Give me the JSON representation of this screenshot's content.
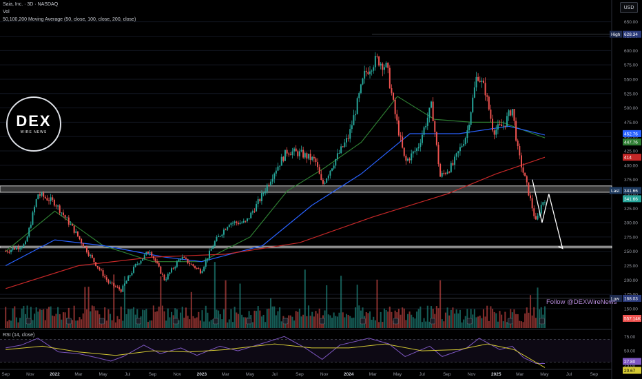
{
  "header": {
    "title": "Saia, Inc. · 3D · NASDAQ",
    "vol_label": "Vol",
    "ma_label": "50,100,200 Moving Average (50, close, 100, close, 200, close)",
    "rsi_label": "RSI (14, close)",
    "currency_button": "USD"
  },
  "logo": {
    "main": "DEX",
    "sub": "WIRE NEWS"
  },
  "follow_text": "Follow @DEXWireNews",
  "colors": {
    "up": "#26a69a",
    "down": "#ef5350",
    "ma50": "#2e7d32",
    "ma100": "#2962ff",
    "ma200": "#c62828",
    "rsi": "#7e57c2",
    "rsi_ma": "#d4c933",
    "zone": "#9e9e9e",
    "projection": "#ffffff",
    "high_label": "#2a3a7a",
    "low_label": "#2a3a7a"
  },
  "chart_data": {
    "type": "candlestick",
    "symbol": "Saia, Inc.",
    "interval": "3D",
    "exchange": "NASDAQ",
    "currency": "USD",
    "x_ticks": [
      "Sep",
      "Nov",
      "2022",
      "Mar",
      "May",
      "Jul",
      "Sep",
      "Nov",
      "2023",
      "Mar",
      "May",
      "Jul",
      "Sep",
      "Nov",
      "2024",
      "Mar",
      "May",
      "Jul",
      "Sep",
      "Nov",
      "2025",
      "Mar",
      "May",
      "Jul",
      "Sep"
    ],
    "y_ticks": [
      150,
      175,
      200,
      225,
      250,
      275,
      300,
      325,
      350,
      375,
      400,
      425,
      450,
      475,
      500,
      525,
      550,
      575,
      600,
      625,
      650
    ],
    "y_range": [
      100,
      685
    ],
    "price_path": [
      [
        "2021-09-01",
        250
      ],
      [
        "2021-10-20",
        262
      ],
      [
        "2021-11-20",
        350
      ],
      [
        "2022-01-01",
        335
      ],
      [
        "2022-02-15",
        290
      ],
      [
        "2022-04-01",
        240
      ],
      [
        "2022-05-15",
        195
      ],
      [
        "2022-06-15",
        182
      ],
      [
        "2022-07-20",
        225
      ],
      [
        "2022-08-25",
        252
      ],
      [
        "2022-10-01",
        200
      ],
      [
        "2022-11-10",
        240
      ],
      [
        "2022-12-30",
        215
      ],
      [
        "2023-02-01",
        265
      ],
      [
        "2023-03-10",
        300
      ],
      [
        "2023-04-20",
        300
      ],
      [
        "2023-05-25",
        340
      ],
      [
        "2023-07-01",
        390
      ],
      [
        "2023-08-01",
        425
      ],
      [
        "2023-09-05",
        420
      ],
      [
        "2023-10-10",
        408
      ],
      [
        "2023-10-27",
        365
      ],
      [
        "2023-11-25",
        405
      ],
      [
        "2024-01-01",
        450
      ],
      [
        "2024-02-10",
        560
      ],
      [
        "2024-03-10",
        585
      ],
      [
        "2024-04-05",
        570
      ],
      [
        "2024-04-25",
        490
      ],
      [
        "2024-05-20",
        405
      ],
      [
        "2024-06-20",
        430
      ],
      [
        "2024-07-25",
        505
      ],
      [
        "2024-08-15",
        380
      ],
      [
        "2024-09-15",
        400
      ],
      [
        "2024-10-20",
        455
      ],
      [
        "2024-11-15",
        560
      ],
      [
        "2024-12-05",
        530
      ],
      [
        "2024-12-25",
        460
      ],
      [
        "2025-01-20",
        470
      ],
      [
        "2025-02-10",
        500
      ],
      [
        "2025-02-25",
        420
      ],
      [
        "2025-03-20",
        360
      ],
      [
        "2025-04-10",
        300
      ],
      [
        "2025-04-25",
        335
      ],
      [
        "2025-05-02",
        341.66
      ]
    ],
    "moving_averages": [
      {
        "name": "MA 50",
        "color": "#2e7d32",
        "points": [
          [
            "2021-09-01",
            250
          ],
          [
            "2022-01-01",
            320
          ],
          [
            "2022-05-01",
            260
          ],
          [
            "2022-09-01",
            232
          ],
          [
            "2023-01-01",
            232
          ],
          [
            "2023-05-01",
            275
          ],
          [
            "2023-08-01",
            355
          ],
          [
            "2023-11-01",
            395
          ],
          [
            "2024-02-01",
            440
          ],
          [
            "2024-05-01",
            520
          ],
          [
            "2024-08-01",
            480
          ],
          [
            "2024-11-01",
            475
          ],
          [
            "2025-01-15",
            475
          ],
          [
            "2025-05-02",
            447.76
          ]
        ]
      },
      {
        "name": "MA 100",
        "color": "#2962ff",
        "points": [
          [
            "2021-09-01",
            225
          ],
          [
            "2022-01-01",
            270
          ],
          [
            "2022-05-01",
            260
          ],
          [
            "2022-10-01",
            240
          ],
          [
            "2023-01-01",
            232
          ],
          [
            "2023-06-01",
            260
          ],
          [
            "2023-10-01",
            330
          ],
          [
            "2024-02-01",
            385
          ],
          [
            "2024-06-01",
            455
          ],
          [
            "2024-10-01",
            455
          ],
          [
            "2025-02-01",
            468
          ],
          [
            "2025-05-02",
            452.76
          ]
        ]
      },
      {
        "name": "MA 200",
        "color": "#c62828",
        "points": [
          [
            "2021-09-01",
            185
          ],
          [
            "2022-03-01",
            225
          ],
          [
            "2022-09-01",
            240
          ],
          [
            "2023-03-01",
            245
          ],
          [
            "2023-09-01",
            265
          ],
          [
            "2024-03-01",
            310
          ],
          [
            "2024-09-01",
            350
          ],
          [
            "2025-01-01",
            385
          ],
          [
            "2025-05-02",
            414
          ]
        ]
      }
    ],
    "zones": [
      {
        "price_low": 353,
        "price_high": 364
      },
      {
        "price_low": 256,
        "price_high": 259
      }
    ],
    "projection": [
      [
        "2025-04-01",
        375
      ],
      [
        "2025-04-25",
        300
      ],
      [
        "2025-05-12",
        350
      ],
      [
        "2025-06-15",
        255
      ]
    ],
    "price_labels": {
      "high": {
        "label": "High",
        "value": "628.34"
      },
      "last": {
        "label": "Last",
        "value": "341.66"
      },
      "low": {
        "label": "Low",
        "value": "168.03"
      },
      "ma100": "452.76",
      "ma50": "447.76",
      "ma200": "414",
      "extra": "341.66",
      "volume": "557.14K"
    },
    "rsi": {
      "name": "RSI (14, close)",
      "y_ticks": [
        25,
        50,
        75
      ],
      "range": [
        20,
        85
      ],
      "bands": [
        30,
        70
      ],
      "last_value": "27.80",
      "last_ma": "20.67",
      "points": [
        [
          "2021-09-01",
          55
        ],
        [
          "2021-10-10",
          60
        ],
        [
          "2021-11-20",
          72
        ],
        [
          "2022-01-10",
          48
        ],
        [
          "2022-03-01",
          45
        ],
        [
          "2022-04-15",
          38
        ],
        [
          "2022-05-20",
          32
        ],
        [
          "2022-06-20",
          40
        ],
        [
          "2022-08-10",
          60
        ],
        [
          "2022-09-20",
          45
        ],
        [
          "2022-11-10",
          55
        ],
        [
          "2022-12-20",
          42
        ],
        [
          "2023-02-15",
          58
        ],
        [
          "2023-04-01",
          50
        ],
        [
          "2023-06-15",
          66
        ],
        [
          "2023-07-25",
          75
        ],
        [
          "2023-09-15",
          55
        ],
        [
          "2023-10-27",
          35
        ],
        [
          "2023-12-10",
          60
        ],
        [
          "2024-02-20",
          72
        ],
        [
          "2024-04-10",
          62
        ],
        [
          "2024-05-20",
          40
        ],
        [
          "2024-07-20",
          58
        ],
        [
          "2024-08-20",
          40
        ],
        [
          "2024-10-20",
          55
        ],
        [
          "2024-11-20",
          72
        ],
        [
          "2025-01-10",
          52
        ],
        [
          "2025-02-10",
          58
        ],
        [
          "2025-03-10",
          38
        ],
        [
          "2025-04-10",
          28
        ],
        [
          "2025-05-02",
          27.8
        ]
      ],
      "ma_points": [
        [
          "2021-09-01",
          52
        ],
        [
          "2021-12-01",
          58
        ],
        [
          "2022-03-01",
          48
        ],
        [
          "2022-06-01",
          42
        ],
        [
          "2022-09-01",
          50
        ],
        [
          "2022-12-01",
          48
        ],
        [
          "2023-03-01",
          52
        ],
        [
          "2023-07-01",
          62
        ],
        [
          "2023-10-01",
          55
        ],
        [
          "2024-01-01",
          55
        ],
        [
          "2024-04-01",
          62
        ],
        [
          "2024-07-01",
          50
        ],
        [
          "2024-10-01",
          52
        ],
        [
          "2024-12-10",
          62
        ],
        [
          "2025-02-15",
          52
        ],
        [
          "2025-05-02",
          20.67
        ]
      ]
    }
  }
}
